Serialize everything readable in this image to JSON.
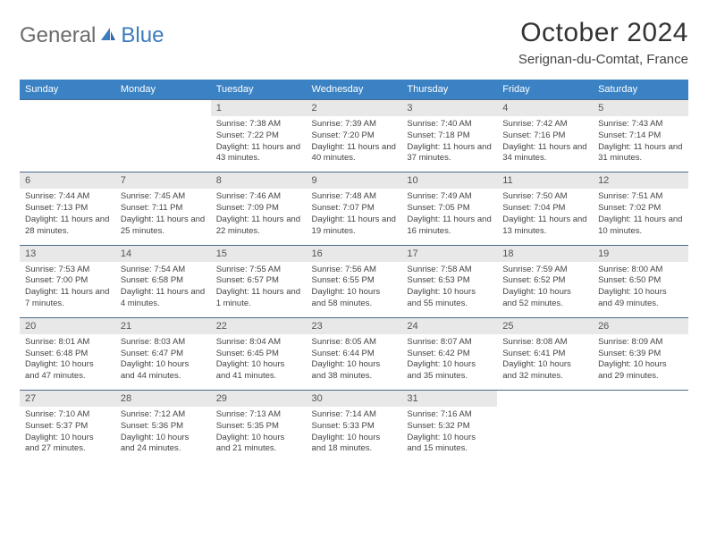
{
  "brand": {
    "part1": "General",
    "part2": "Blue"
  },
  "title": "October 2024",
  "location": "Serignan-du-Comtat, France",
  "colors": {
    "header_bg": "#3b82c4",
    "header_text": "#ffffff",
    "num_bg": "#e8e8e8",
    "border": "#4a6a8a",
    "logo_blue": "#3b7bbf",
    "logo_gray": "#6b6b6b"
  },
  "day_labels": [
    "Sunday",
    "Monday",
    "Tuesday",
    "Wednesday",
    "Thursday",
    "Friday",
    "Saturday"
  ],
  "weeks": [
    {
      "nums": [
        "",
        "",
        "1",
        "2",
        "3",
        "4",
        "5"
      ],
      "details": [
        "",
        "",
        "Sunrise: 7:38 AM\nSunset: 7:22 PM\nDaylight: 11 hours and 43 minutes.",
        "Sunrise: 7:39 AM\nSunset: 7:20 PM\nDaylight: 11 hours and 40 minutes.",
        "Sunrise: 7:40 AM\nSunset: 7:18 PM\nDaylight: 11 hours and 37 minutes.",
        "Sunrise: 7:42 AM\nSunset: 7:16 PM\nDaylight: 11 hours and 34 minutes.",
        "Sunrise: 7:43 AM\nSunset: 7:14 PM\nDaylight: 11 hours and 31 minutes."
      ]
    },
    {
      "nums": [
        "6",
        "7",
        "8",
        "9",
        "10",
        "11",
        "12"
      ],
      "details": [
        "Sunrise: 7:44 AM\nSunset: 7:13 PM\nDaylight: 11 hours and 28 minutes.",
        "Sunrise: 7:45 AM\nSunset: 7:11 PM\nDaylight: 11 hours and 25 minutes.",
        "Sunrise: 7:46 AM\nSunset: 7:09 PM\nDaylight: 11 hours and 22 minutes.",
        "Sunrise: 7:48 AM\nSunset: 7:07 PM\nDaylight: 11 hours and 19 minutes.",
        "Sunrise: 7:49 AM\nSunset: 7:05 PM\nDaylight: 11 hours and 16 minutes.",
        "Sunrise: 7:50 AM\nSunset: 7:04 PM\nDaylight: 11 hours and 13 minutes.",
        "Sunrise: 7:51 AM\nSunset: 7:02 PM\nDaylight: 11 hours and 10 minutes."
      ]
    },
    {
      "nums": [
        "13",
        "14",
        "15",
        "16",
        "17",
        "18",
        "19"
      ],
      "details": [
        "Sunrise: 7:53 AM\nSunset: 7:00 PM\nDaylight: 11 hours and 7 minutes.",
        "Sunrise: 7:54 AM\nSunset: 6:58 PM\nDaylight: 11 hours and 4 minutes.",
        "Sunrise: 7:55 AM\nSunset: 6:57 PM\nDaylight: 11 hours and 1 minute.",
        "Sunrise: 7:56 AM\nSunset: 6:55 PM\nDaylight: 10 hours and 58 minutes.",
        "Sunrise: 7:58 AM\nSunset: 6:53 PM\nDaylight: 10 hours and 55 minutes.",
        "Sunrise: 7:59 AM\nSunset: 6:52 PM\nDaylight: 10 hours and 52 minutes.",
        "Sunrise: 8:00 AM\nSunset: 6:50 PM\nDaylight: 10 hours and 49 minutes."
      ]
    },
    {
      "nums": [
        "20",
        "21",
        "22",
        "23",
        "24",
        "25",
        "26"
      ],
      "details": [
        "Sunrise: 8:01 AM\nSunset: 6:48 PM\nDaylight: 10 hours and 47 minutes.",
        "Sunrise: 8:03 AM\nSunset: 6:47 PM\nDaylight: 10 hours and 44 minutes.",
        "Sunrise: 8:04 AM\nSunset: 6:45 PM\nDaylight: 10 hours and 41 minutes.",
        "Sunrise: 8:05 AM\nSunset: 6:44 PM\nDaylight: 10 hours and 38 minutes.",
        "Sunrise: 8:07 AM\nSunset: 6:42 PM\nDaylight: 10 hours and 35 minutes.",
        "Sunrise: 8:08 AM\nSunset: 6:41 PM\nDaylight: 10 hours and 32 minutes.",
        "Sunrise: 8:09 AM\nSunset: 6:39 PM\nDaylight: 10 hours and 29 minutes."
      ]
    },
    {
      "nums": [
        "27",
        "28",
        "29",
        "30",
        "31",
        "",
        ""
      ],
      "details": [
        "Sunrise: 7:10 AM\nSunset: 5:37 PM\nDaylight: 10 hours and 27 minutes.",
        "Sunrise: 7:12 AM\nSunset: 5:36 PM\nDaylight: 10 hours and 24 minutes.",
        "Sunrise: 7:13 AM\nSunset: 5:35 PM\nDaylight: 10 hours and 21 minutes.",
        "Sunrise: 7:14 AM\nSunset: 5:33 PM\nDaylight: 10 hours and 18 minutes.",
        "Sunrise: 7:16 AM\nSunset: 5:32 PM\nDaylight: 10 hours and 15 minutes.",
        "",
        ""
      ]
    }
  ]
}
